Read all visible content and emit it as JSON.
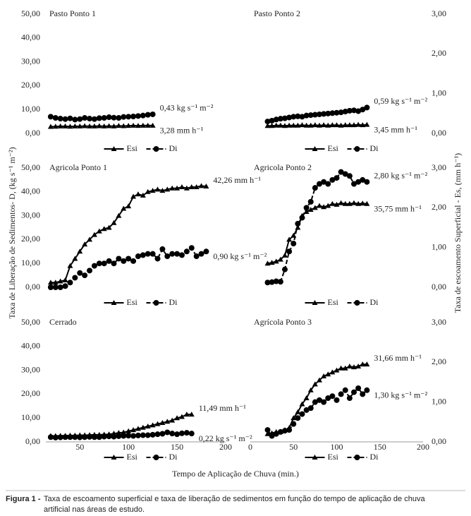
{
  "figure": {
    "y_label_left": "Taxa de Liberação de Sedimentos- D, (kg s⁻¹ m⁻²)",
    "y_label_right": "Taxa de escoamento Superficial - Es, (mm h⁻¹)",
    "x_label": "Tempo de Aplicação de Chuva (min.)",
    "caption_label": "Figura 1 -",
    "caption_line1": "Taxa de escoamento superficial e taxa de liberação de sedimentos em função do tempo de aplicação de chuva",
    "caption_line2": "artificial nas áreas de estudo."
  },
  "chart_data": [
    {
      "type": "line",
      "title": "Pasto Ponto 1",
      "x": [
        20,
        25,
        30,
        35,
        40,
        45,
        50,
        55,
        60,
        65,
        70,
        75,
        80,
        85,
        90,
        95,
        100,
        105,
        110,
        115,
        120,
        125
      ],
      "xlim": [
        15,
        200
      ],
      "ylim": [
        0,
        50
      ],
      "yticks": [
        {
          "value": 0,
          "label": "0,00"
        },
        {
          "value": 10,
          "label": "10,00"
        },
        {
          "value": 20,
          "label": "20,00"
        },
        {
          "value": 30,
          "label": "30,00"
        },
        {
          "value": 40,
          "label": "40,00"
        },
        {
          "value": 50,
          "label": "50,00"
        }
      ],
      "series": [
        {
          "name": "Esi",
          "color": "#000000",
          "marker": "triangle",
          "annotation": "3,28  mm h⁻¹",
          "values": [
            2.8,
            2.9,
            3,
            3,
            2.9,
            3,
            3,
            3.1,
            3,
            3,
            3.1,
            3,
            3.1,
            3,
            3.2,
            3.1,
            3.2,
            3.3,
            3.2,
            3.3,
            3.3,
            3.3
          ]
        },
        {
          "name": "Di",
          "color": "#000000",
          "marker": "circle",
          "dashed": true,
          "annotation": "0,43 kg s⁻¹ m⁻²",
          "values": [
            7,
            6.5,
            6.2,
            6,
            6.3,
            5.8,
            6,
            6.5,
            6.2,
            6,
            6.4,
            6.5,
            6.8,
            6.6,
            6.5,
            6.9,
            7,
            7.1,
            7.3,
            7.5,
            7.8,
            8
          ]
        }
      ]
    },
    {
      "type": "line",
      "title": "Pasto Ponto 2",
      "x": [
        20,
        25,
        30,
        35,
        40,
        45,
        50,
        55,
        60,
        65,
        70,
        75,
        80,
        85,
        90,
        95,
        100,
        105,
        110,
        115,
        120,
        125,
        130,
        135
      ],
      "xlim": [
        0,
        200
      ],
      "ylim": [
        0,
        3
      ],
      "yticks": [
        {
          "value": 0,
          "label": "0,00"
        },
        {
          "value": 1,
          "label": "1,00"
        },
        {
          "value": 2,
          "label": "2,00"
        },
        {
          "value": 3,
          "label": "3,00"
        }
      ],
      "series": [
        {
          "name": "Esi",
          "color": "#000000",
          "marker": "triangle",
          "annotation": "3,45  mm h⁻¹",
          "values": [
            0.19,
            0.19,
            0.2,
            0.2,
            0.19,
            0.2,
            0.2,
            0.2,
            0.21,
            0.2,
            0.2,
            0.21,
            0.2,
            0.21,
            0.2,
            0.21,
            0.21,
            0.2,
            0.21,
            0.21,
            0.21,
            0.22,
            0.21,
            0.22
          ]
        },
        {
          "name": "Di",
          "color": "#000000",
          "marker": "circle",
          "dashed": true,
          "annotation": "0,59 kg s⁻¹ m⁻²",
          "values": [
            0.3,
            0.32,
            0.35,
            0.37,
            0.38,
            0.4,
            0.42,
            0.43,
            0.42,
            0.45,
            0.46,
            0.47,
            0.48,
            0.49,
            0.5,
            0.51,
            0.52,
            0.53,
            0.55,
            0.57,
            0.58,
            0.56,
            0.6,
            0.65
          ]
        }
      ]
    },
    {
      "type": "line",
      "title": "Agricola Ponto 1",
      "x": [
        20,
        25,
        30,
        35,
        40,
        45,
        50,
        55,
        60,
        65,
        70,
        75,
        80,
        85,
        90,
        95,
        100,
        105,
        110,
        115,
        120,
        125,
        130,
        135,
        140,
        145,
        150,
        155,
        160,
        165,
        170,
        175,
        180
      ],
      "xlim": [
        15,
        200
      ],
      "ylim": [
        0,
        50
      ],
      "yticks": [
        {
          "value": 0,
          "label": "0,00"
        },
        {
          "value": 10,
          "label": "10,00"
        },
        {
          "value": 20,
          "label": "20,00"
        },
        {
          "value": 30,
          "label": "30,00"
        },
        {
          "value": 40,
          "label": "40,00"
        },
        {
          "value": 50,
          "label": "50,00"
        }
      ],
      "series": [
        {
          "name": "Esi",
          "color": "#000000",
          "marker": "triangle",
          "annotation": "42,26  mm h⁻¹",
          "values": [
            2,
            2,
            2.5,
            3,
            9,
            12,
            15,
            18,
            20,
            22,
            23.5,
            24.5,
            25,
            27,
            30,
            33,
            34,
            38,
            39,
            38.5,
            40,
            40.5,
            41,
            40.5,
            41,
            41.5,
            41.5,
            42,
            41.5,
            42,
            42,
            42.5,
            42.3
          ]
        },
        {
          "name": "Di",
          "color": "#000000",
          "marker": "circle",
          "dashed": true,
          "annotation": "0,90 kg s⁻¹ m⁻²",
          "values": [
            0,
            0,
            0,
            0.5,
            2,
            4,
            6,
            5,
            7,
            9,
            10,
            10,
            11,
            10,
            12,
            11,
            12,
            11,
            13,
            13.5,
            14,
            14,
            12,
            16,
            13,
            14,
            14,
            13.5,
            15,
            16.5,
            13,
            14,
            15
          ]
        }
      ]
    },
    {
      "type": "line",
      "title": "Agricola Ponto 2",
      "x": [
        20,
        25,
        30,
        35,
        40,
        45,
        50,
        55,
        60,
        65,
        70,
        75,
        80,
        85,
        90,
        95,
        100,
        105,
        110,
        115,
        120,
        125,
        130,
        135
      ],
      "xlim": [
        0,
        200
      ],
      "ylim": [
        0,
        3
      ],
      "yticks": [
        {
          "value": 0,
          "label": "0,00"
        },
        {
          "value": 1,
          "label": "1,00"
        },
        {
          "value": 2,
          "label": "2,00"
        },
        {
          "value": 3,
          "label": "3,00"
        }
      ],
      "series": [
        {
          "name": "Esi",
          "color": "#000000",
          "marker": "triangle",
          "annotation": "35,75  mm h⁻¹",
          "values": [
            0.6,
            0.62,
            0.65,
            0.7,
            0.8,
            1.2,
            1.3,
            1.5,
            1.8,
            1.9,
            1.95,
            2.0,
            2.05,
            2.02,
            2.05,
            2.1,
            2.08,
            2.12,
            2.1,
            2.1,
            2.12,
            2.1,
            2.11,
            2.1
          ]
        },
        {
          "name": "Di",
          "color": "#000000",
          "marker": "circle",
          "dashed": true,
          "annotation": "2,80 kg s⁻¹ m⁻²",
          "values": [
            0.12,
            0.13,
            0.15,
            0.14,
            0.45,
            0.9,
            1.1,
            1.6,
            1.75,
            2.0,
            2.15,
            2.5,
            2.6,
            2.65,
            2.6,
            2.7,
            2.75,
            2.9,
            2.85,
            2.8,
            2.6,
            2.65,
            2.7,
            2.65
          ]
        }
      ]
    },
    {
      "type": "line",
      "title": "Cerrado",
      "x": [
        20,
        25,
        30,
        35,
        40,
        45,
        50,
        55,
        60,
        65,
        70,
        75,
        80,
        85,
        90,
        95,
        100,
        105,
        110,
        115,
        120,
        125,
        130,
        135,
        140,
        145,
        150,
        155,
        160,
        165
      ],
      "xlim": [
        15,
        200
      ],
      "xticks": [
        50,
        100,
        150,
        200
      ],
      "ylim": [
        0,
        50
      ],
      "yticks": [
        {
          "value": 0,
          "label": "0,00"
        },
        {
          "value": 10,
          "label": "10,00"
        },
        {
          "value": 20,
          "label": "20,00"
        },
        {
          "value": 30,
          "label": "30,00"
        },
        {
          "value": 40,
          "label": "40,00"
        },
        {
          "value": 50,
          "label": "50,00"
        }
      ],
      "series": [
        {
          "name": "Esi",
          "color": "#000000",
          "marker": "triangle",
          "annotation": "11,49 mm h⁻¹",
          "values": [
            2.5,
            2.5,
            2.6,
            2.6,
            2.7,
            2.7,
            2.8,
            2.8,
            2.9,
            3,
            3,
            3.1,
            3.2,
            3.5,
            3.8,
            4,
            4.5,
            5,
            5.5,
            6,
            6.5,
            7,
            7.5,
            8,
            8.5,
            9,
            10,
            10.5,
            11.5,
            11.5
          ]
        },
        {
          "name": "Di",
          "color": "#000000",
          "marker": "circle",
          "dashed": true,
          "annotation": "0,22 kg s⁻¹ m⁻²",
          "values": [
            2,
            1.8,
            1.9,
            2,
            2,
            2,
            1.9,
            2,
            2.1,
            2,
            2,
            2.2,
            2.3,
            2.2,
            2.4,
            2.5,
            2.6,
            2.5,
            2.7,
            2.8,
            2.8,
            3,
            3.2,
            3.4,
            4,
            3.5,
            3.2,
            3.6,
            3.8,
            3.5
          ]
        }
      ]
    },
    {
      "type": "line",
      "title": "Agrícola Ponto 3",
      "x": [
        20,
        25,
        30,
        35,
        40,
        45,
        50,
        55,
        60,
        65,
        70,
        75,
        80,
        85,
        90,
        95,
        100,
        105,
        110,
        115,
        120,
        125,
        130,
        135
      ],
      "xlim": [
        0,
        200
      ],
      "xticks": [
        0,
        50,
        100,
        150,
        200
      ],
      "ylim": [
        0,
        3
      ],
      "yticks": [
        {
          "value": 0,
          "label": "0,00"
        },
        {
          "value": 1,
          "label": "1,00"
        },
        {
          "value": 2,
          "label": "2,00"
        },
        {
          "value": 3,
          "label": "3,00"
        }
      ],
      "series": [
        {
          "name": "Esi",
          "color": "#000000",
          "marker": "triangle",
          "annotation": "31,66 mm h⁻¹",
          "values": [
            0.2,
            0.22,
            0.25,
            0.25,
            0.3,
            0.35,
            0.6,
            0.75,
            0.95,
            1.1,
            1.3,
            1.45,
            1.55,
            1.65,
            1.7,
            1.75,
            1.8,
            1.85,
            1.85,
            1.9,
            1.88,
            1.9,
            1.95,
            1.95
          ]
        },
        {
          "name": "Di",
          "color": "#000000",
          "marker": "circle",
          "dashed": true,
          "annotation": "1,30 kg s⁻¹ m⁻²",
          "values": [
            0.3,
            0.15,
            0.2,
            0.25,
            0.28,
            0.3,
            0.45,
            0.6,
            0.7,
            0.8,
            0.85,
            1.0,
            1.05,
            1.0,
            1.1,
            1.15,
            1.05,
            1.2,
            1.3,
            1.1,
            1.25,
            1.35,
            1.2,
            1.3
          ]
        }
      ]
    }
  ]
}
